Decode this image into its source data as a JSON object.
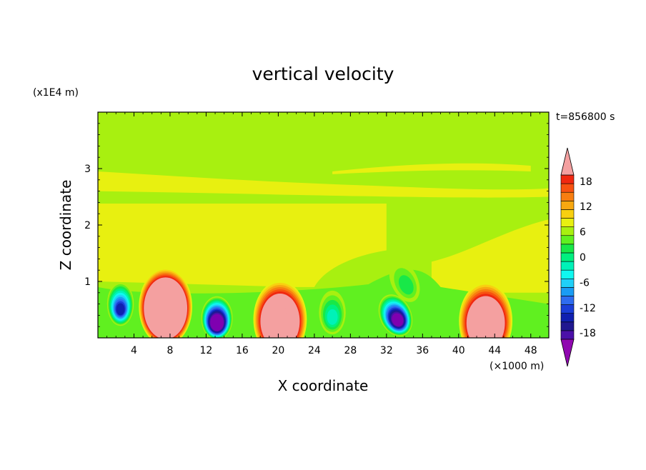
{
  "chart_data": {
    "type": "heatmap",
    "title": "vertical velocity",
    "xlabel": "X coordinate",
    "ylabel": "Z coordinate",
    "x_unit": "(×1000 m)",
    "y_unit": "(x1E4 m)",
    "time_label": "t=856800 s",
    "xlim": [
      0,
      50
    ],
    "ylim": [
      0,
      4
    ],
    "x_ticks": [
      4,
      8,
      12,
      16,
      20,
      24,
      28,
      32,
      36,
      40,
      44,
      48
    ],
    "x_tick_labels": [
      "4",
      "8",
      "12",
      "16",
      "20",
      "24",
      "28",
      "32",
      "36",
      "40",
      "44",
      "48"
    ],
    "y_ticks": [
      1,
      2,
      3
    ],
    "y_tick_labels": [
      "1",
      "2",
      "3"
    ],
    "colorbar": {
      "min": -21,
      "max": 21,
      "step": 1.5,
      "ticks": [
        18,
        12,
        6,
        0,
        -6,
        -12,
        -18
      ],
      "tick_labels": [
        "18",
        "12",
        "6",
        "0",
        "-6",
        "-12",
        "-18"
      ],
      "colors": [
        "#7f00b0",
        "#4b10a8",
        "#201890",
        "#1020b0",
        "#1a3ed8",
        "#2e6cf0",
        "#1a9cf4",
        "#20d0f8",
        "#10f8f0",
        "#00f2b8",
        "#00f080",
        "#18e848",
        "#60f020",
        "#a8f010",
        "#e8f010",
        "#f8d010",
        "#f8a810",
        "#f87e10",
        "#f85210",
        "#f02810",
        "#f4a0a0"
      ],
      "over_color": "#f4a0a0",
      "under_color": "#9008b0"
    },
    "features": [
      {
        "x": 7.5,
        "z": 0.55,
        "w": 36
      },
      {
        "x": 20.2,
        "z": 0.33,
        "w": 26
      },
      {
        "x": 43,
        "z": 0.3,
        "w": 24
      },
      {
        "x": 13.2,
        "z": 0.35,
        "w": -26
      },
      {
        "x": 33,
        "z": 0.4,
        "w": -22
      },
      {
        "x": 2.5,
        "z": 0.6,
        "w": -16
      },
      {
        "x": 26,
        "z": 0.45,
        "w": -7
      },
      {
        "x": 34,
        "z": 1.0,
        "w": -5
      }
    ]
  }
}
